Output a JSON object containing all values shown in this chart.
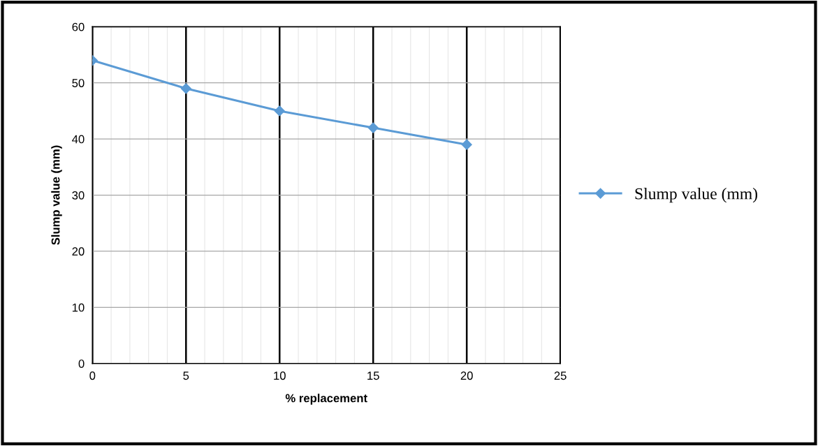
{
  "chart_data": {
    "type": "line",
    "xlabel": "% replacement",
    "ylabel": "Slump value (mm)",
    "x": [
      0,
      5,
      10,
      15,
      20
    ],
    "series": [
      {
        "name": "Slump value (mm)",
        "color": "#5b9bd5",
        "values": [
          54,
          49,
          45,
          42,
          39
        ]
      }
    ],
    "xlim": [
      0,
      25
    ],
    "xticks": [
      0,
      5,
      10,
      15,
      20,
      25
    ],
    "ylim": [
      0,
      60
    ],
    "yticks": [
      0,
      10,
      20,
      30,
      40,
      50,
      60
    ],
    "grid": true,
    "legend": "right",
    "marker": "diamond",
    "line_style": "solid"
  }
}
